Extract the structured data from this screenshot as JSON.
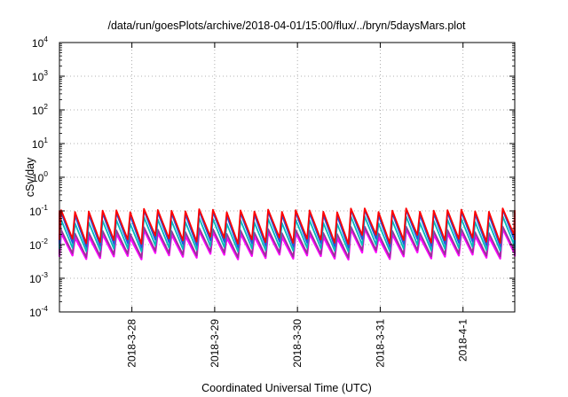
{
  "chart_data": {
    "type": "line",
    "title": "/data/run/goesPlots/archive/2018-04-01/15:00/flux/../bryn/5daysMars.plot",
    "xlabel": "Coordinated Universal Time (UTC)",
    "ylabel": "cSv/day",
    "yscale": "log",
    "ylim": [
      0.0001,
      10000
    ],
    "y_ticks": [
      {
        "base": "10",
        "exp": "-4"
      },
      {
        "base": "10",
        "exp": "-3"
      },
      {
        "base": "10",
        "exp": "-2"
      },
      {
        "base": "10",
        "exp": "-1"
      },
      {
        "base": "10",
        "exp": "0"
      },
      {
        "base": "10",
        "exp": "1"
      },
      {
        "base": "10",
        "exp": "2"
      },
      {
        "base": "10",
        "exp": "3"
      },
      {
        "base": "10",
        "exp": "4"
      }
    ],
    "x_ticks": [
      "2018-3-28",
      "2018-3-29",
      "2018-3-30",
      "2018-3-31",
      "2018-4-1"
    ],
    "xlim": [
      "2018-03-27T03:00",
      "2018-04-01T15:00"
    ],
    "grid": true,
    "legend": "none",
    "pattern": {
      "cycles_per_day": 6,
      "first_peak_time": "2018-03-27T03:30",
      "note": "sawtooth; values at each cycle peak and trough, read from the plot"
    },
    "series": [
      {
        "color": "#ff0000",
        "peak_range": [
          0.09,
          0.12
        ],
        "trough_range": [
          0.01,
          0.02
        ]
      },
      {
        "color": "#2255dd",
        "peak_range": [
          0.07,
          0.11
        ],
        "trough_range": [
          0.008,
          0.015
        ]
      },
      {
        "color": "#00bbbb",
        "peak_range": [
          0.04,
          0.07
        ],
        "trough_range": [
          0.006,
          0.01
        ]
      },
      {
        "color": "#993399",
        "peak_range": [
          0.02,
          0.035
        ],
        "trough_range": [
          0.004,
          0.007
        ]
      },
      {
        "color": "#ff00ff",
        "peak_range": [
          0.015,
          0.03
        ],
        "trough_range": [
          0.0035,
          0.006
        ]
      }
    ]
  }
}
